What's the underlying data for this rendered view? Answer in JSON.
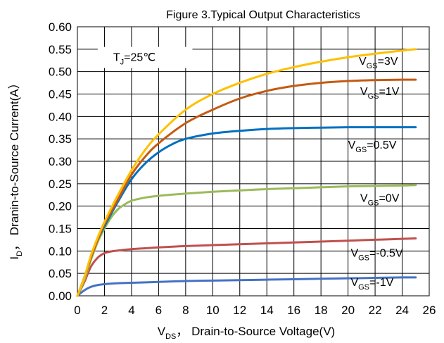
{
  "chart_data": {
    "type": "line",
    "title": "Figure 3.Typical Output Characteristics",
    "xlabel": {
      "main": "V",
      "sub": "DS",
      "rest": "， Drain-to-Source Voltage(V)"
    },
    "ylabel": {
      "main": "I",
      "sub": "D",
      "rest": "， Dranin-to-Source Current(A）"
    },
    "xlim": [
      0,
      26
    ],
    "ylim": [
      0,
      0.6
    ],
    "x_ticks": [
      "0",
      "2",
      "4",
      "6",
      "8",
      "10",
      "12",
      "14",
      "16",
      "18",
      "20",
      "22",
      "24",
      "26"
    ],
    "y_ticks": [
      "0.00",
      "0.05",
      "0.10",
      "0.15",
      "0.20",
      "0.25",
      "0.30",
      "0.35",
      "0.40",
      "0.45",
      "0.50",
      "0.55",
      "0.60"
    ],
    "grid": true,
    "annotation": {
      "main": "T",
      "sub": "J",
      "rest": "=25℃"
    },
    "series": [
      {
        "name": {
          "main": "V",
          "sub": "GS",
          "rest": "=3V"
        },
        "color": "#FFC000",
        "x": [
          0,
          0.5,
          1,
          1.5,
          2,
          3,
          4,
          5,
          6,
          8,
          10,
          12,
          14,
          16,
          18,
          20,
          22,
          24,
          25
        ],
        "y": [
          0,
          0.04,
          0.09,
          0.13,
          0.165,
          0.225,
          0.28,
          0.325,
          0.36,
          0.415,
          0.45,
          0.475,
          0.495,
          0.51,
          0.522,
          0.532,
          0.54,
          0.547,
          0.55
        ]
      },
      {
        "name": {
          "main": "V",
          "sub": "GS",
          "rest": "=1V"
        },
        "color": "#C55A11",
        "x": [
          0,
          0.5,
          1,
          1.5,
          2,
          3,
          4,
          5,
          6,
          8,
          10,
          12,
          14,
          16,
          18,
          20,
          22,
          24,
          25
        ],
        "y": [
          0,
          0.04,
          0.085,
          0.125,
          0.16,
          0.215,
          0.27,
          0.31,
          0.34,
          0.385,
          0.415,
          0.44,
          0.457,
          0.468,
          0.475,
          0.479,
          0.481,
          0.482,
          0.482
        ]
      },
      {
        "name": {
          "main": "V",
          "sub": "GS",
          "rest": "=0.5V"
        },
        "color": "#0070C0",
        "x": [
          0,
          0.5,
          1,
          1.5,
          2,
          3,
          4,
          5,
          6,
          7,
          8,
          10,
          12,
          14,
          16,
          18,
          20,
          22,
          24,
          25
        ],
        "y": [
          0,
          0.04,
          0.085,
          0.125,
          0.155,
          0.21,
          0.26,
          0.295,
          0.32,
          0.338,
          0.35,
          0.362,
          0.368,
          0.372,
          0.374,
          0.375,
          0.376,
          0.376,
          0.376,
          0.376
        ]
      },
      {
        "name": {
          "main": "V",
          "sub": "GS",
          "rest": "=0V"
        },
        "color": "#9BBB59",
        "x": [
          0,
          0.5,
          1,
          1.5,
          2,
          2.5,
          3,
          3.5,
          4,
          5,
          6,
          8,
          10,
          12,
          14,
          16,
          18,
          20,
          22,
          24,
          25
        ],
        "y": [
          0,
          0.035,
          0.08,
          0.12,
          0.15,
          0.175,
          0.193,
          0.204,
          0.212,
          0.219,
          0.223,
          0.228,
          0.232,
          0.235,
          0.238,
          0.24,
          0.242,
          0.244,
          0.245,
          0.246,
          0.247
        ]
      },
      {
        "name": {
          "main": "V",
          "sub": "GS",
          "rest": "=-0.5V"
        },
        "color": "#C0504D",
        "x": [
          0,
          0.5,
          1,
          1.5,
          2,
          2.5,
          3,
          4,
          5,
          6,
          8,
          10,
          12,
          14,
          16,
          18,
          20,
          22,
          24,
          25
        ],
        "y": [
          0,
          0.03,
          0.065,
          0.085,
          0.095,
          0.099,
          0.101,
          0.104,
          0.106,
          0.108,
          0.111,
          0.113,
          0.115,
          0.117,
          0.119,
          0.121,
          0.123,
          0.125,
          0.127,
          0.128
        ]
      },
      {
        "name": {
          "main": "V",
          "sub": "GS",
          "rest": "=-1V"
        },
        "color": "#4472C4",
        "x": [
          0,
          0.5,
          1,
          1.5,
          2,
          3,
          4,
          6,
          8,
          10,
          12,
          14,
          16,
          18,
          20,
          22,
          24,
          25
        ],
        "y": [
          0,
          0.012,
          0.02,
          0.024,
          0.026,
          0.028,
          0.029,
          0.031,
          0.033,
          0.034,
          0.035,
          0.036,
          0.037,
          0.038,
          0.039,
          0.04,
          0.041,
          0.041
        ]
      }
    ]
  }
}
